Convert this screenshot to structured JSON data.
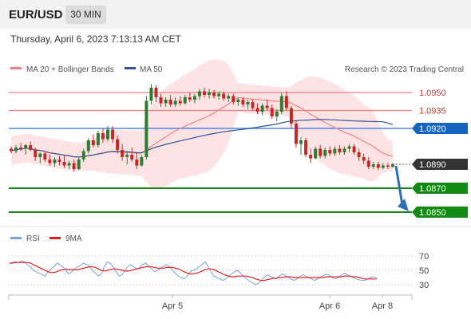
{
  "header": {
    "symbol": "EUR/USD",
    "timeframe": "30 MIN",
    "timestamp": "Thursday, April 6, 2023 7:13:13 AM CET"
  },
  "legend": {
    "ma20": "MA 20 + Bollinger Bands",
    "ma50": "MA 50",
    "credit": "Research © 2023 Trading Central",
    "rsi": "RSI",
    "rsi_ma": "9MA"
  },
  "colors": {
    "ma20": "#f08080",
    "ma50": "#2f5597",
    "bands": "#fde0e0",
    "bull": "#2e7d32",
    "bear": "#c62828",
    "support": "#138a13",
    "resistance": "#f08080",
    "pivot": "#4a86e8",
    "last": "#333333",
    "arrow": "#2e6fb5",
    "rsi": "#7b9fe0",
    "rsi_ma": "#e02020"
  },
  "chart_data": [
    {
      "type": "candlestick",
      "ylim": [
        1.0842,
        1.0962
      ],
      "x_ticks": [
        "Apr 5",
        "Apr 6",
        "Apr 8"
      ],
      "levels": [
        {
          "name": "resistance-2",
          "value": "1.0950",
          "role": "resistance"
        },
        {
          "name": "resistance-1",
          "value": "1.0935",
          "role": "resistance"
        },
        {
          "name": "pivot",
          "value": "1.0920",
          "role": "pivot"
        },
        {
          "name": "last-price",
          "value": "1.0890",
          "role": "last"
        },
        {
          "name": "support-1",
          "value": "1.0870",
          "role": "support"
        },
        {
          "name": "support-2",
          "value": "1.0850",
          "role": "support"
        }
      ],
      "ohlc": [
        [
          1.0903,
          1.0905,
          1.0899,
          1.0901
        ],
        [
          1.0901,
          1.0906,
          1.0899,
          1.0904
        ],
        [
          1.0904,
          1.0908,
          1.0901,
          1.0903
        ],
        [
          1.0903,
          1.0907,
          1.0898,
          1.0906
        ],
        [
          1.0906,
          1.0909,
          1.0901,
          1.0902
        ],
        [
          1.0902,
          1.0904,
          1.0893,
          1.0896
        ],
        [
          1.0896,
          1.09,
          1.0891,
          1.0899
        ],
        [
          1.0899,
          1.0901,
          1.0892,
          1.0894
        ],
        [
          1.0894,
          1.0898,
          1.0889,
          1.0891
        ],
        [
          1.0891,
          1.0896,
          1.0888,
          1.0894
        ],
        [
          1.0894,
          1.0897,
          1.0889,
          1.0892
        ],
        [
          1.0892,
          1.0897,
          1.0887,
          1.0889
        ],
        [
          1.0889,
          1.0893,
          1.0886,
          1.0891
        ],
        [
          1.0891,
          1.0894,
          1.0884,
          1.0886
        ],
        [
          1.0886,
          1.0896,
          1.0885,
          1.0894
        ],
        [
          1.0894,
          1.0903,
          1.0892,
          1.0901
        ],
        [
          1.0901,
          1.0912,
          1.0899,
          1.091
        ],
        [
          1.091,
          1.0915,
          1.0904,
          1.0906
        ],
        [
          1.0906,
          1.0918,
          1.0904,
          1.0916
        ],
        [
          1.0916,
          1.092,
          1.0908,
          1.0911
        ],
        [
          1.0911,
          1.0922,
          1.0909,
          1.0919
        ],
        [
          1.0919,
          1.0922,
          1.0908,
          1.0911
        ],
        [
          1.0911,
          1.0914,
          1.0899,
          1.0902
        ],
        [
          1.0902,
          1.0907,
          1.0893,
          1.0896
        ],
        [
          1.0896,
          1.0901,
          1.089,
          1.0898
        ],
        [
          1.0898,
          1.0904,
          1.0892,
          1.0894
        ],
        [
          1.0894,
          1.09,
          1.0886,
          1.0889
        ],
        [
          1.0889,
          1.0898,
          1.0888,
          1.0896
        ],
        [
          1.0896,
          1.0947,
          1.0894,
          1.0943
        ],
        [
          1.0943,
          1.0957,
          1.094,
          1.0954
        ],
        [
          1.0954,
          1.0956,
          1.0942,
          1.0946
        ],
        [
          1.0946,
          1.0949,
          1.0938,
          1.0941
        ],
        [
          1.0941,
          1.0946,
          1.0938,
          1.0944
        ],
        [
          1.0944,
          1.0948,
          1.0938,
          1.094
        ],
        [
          1.094,
          1.0946,
          1.0938,
          1.0943
        ],
        [
          1.0943,
          1.0947,
          1.0939,
          1.0941
        ],
        [
          1.0941,
          1.0948,
          1.094,
          1.0946
        ],
        [
          1.0946,
          1.095,
          1.0942,
          1.0944
        ],
        [
          1.0944,
          1.0949,
          1.0941,
          1.0947
        ],
        [
          1.0947,
          1.0953,
          1.0944,
          1.0951
        ],
        [
          1.0951,
          1.0954,
          1.0946,
          1.0948
        ],
        [
          1.0948,
          1.0953,
          1.0945,
          1.095
        ],
        [
          1.095,
          1.0952,
          1.0945,
          1.0947
        ],
        [
          1.0947,
          1.0951,
          1.0944,
          1.0949
        ],
        [
          1.0949,
          1.0951,
          1.0943,
          1.0945
        ],
        [
          1.0945,
          1.0949,
          1.0942,
          1.0947
        ],
        [
          1.0947,
          1.0949,
          1.094,
          1.0942
        ],
        [
          1.0942,
          1.0946,
          1.0939,
          1.0944
        ],
        [
          1.0944,
          1.0946,
          1.0938,
          1.094
        ],
        [
          1.094,
          1.0944,
          1.0936,
          1.0942
        ],
        [
          1.0942,
          1.0944,
          1.0935,
          1.0937
        ],
        [
          1.0937,
          1.0941,
          1.0932,
          1.0934
        ],
        [
          1.0934,
          1.0941,
          1.0931,
          1.0939
        ],
        [
          1.0939,
          1.0944,
          1.0935,
          1.0937
        ],
        [
          1.0937,
          1.094,
          1.0928,
          1.093
        ],
        [
          1.093,
          1.0936,
          1.0926,
          1.0934
        ],
        [
          1.0934,
          1.095,
          1.0932,
          1.0947
        ],
        [
          1.0947,
          1.0951,
          1.0935,
          1.0937
        ],
        [
          1.0937,
          1.0939,
          1.092,
          1.0924
        ],
        [
          1.0924,
          1.0926,
          1.0904,
          1.0907
        ],
        [
          1.0907,
          1.0913,
          1.0898,
          1.091
        ],
        [
          1.091,
          1.0912,
          1.0896,
          1.0898
        ],
        [
          1.0898,
          1.0903,
          1.0891,
          1.0895
        ],
        [
          1.0895,
          1.0905,
          1.0894,
          1.0903
        ],
        [
          1.0903,
          1.0906,
          1.0895,
          1.0897
        ],
        [
          1.0897,
          1.0904,
          1.0895,
          1.0902
        ],
        [
          1.0902,
          1.0905,
          1.0897,
          1.0899
        ],
        [
          1.0899,
          1.0905,
          1.0897,
          1.0903
        ],
        [
          1.0903,
          1.0906,
          1.0898,
          1.09
        ],
        [
          1.09,
          1.0905,
          1.0898,
          1.0903
        ],
        [
          1.0903,
          1.0907,
          1.09,
          1.0905
        ],
        [
          1.0905,
          1.0907,
          1.0898,
          1.09
        ],
        [
          1.09,
          1.0903,
          1.0893,
          1.0896
        ],
        [
          1.0896,
          1.0899,
          1.089,
          1.0893
        ],
        [
          1.0893,
          1.0896,
          1.0886,
          1.0888
        ],
        [
          1.0888,
          1.0892,
          1.0886,
          1.089
        ],
        [
          1.089,
          1.0892,
          1.0885,
          1.0887
        ],
        [
          1.0887,
          1.0891,
          1.0886,
          1.0889
        ],
        [
          1.0889,
          1.0891,
          1.0886,
          1.0888
        ],
        [
          1.0888,
          1.0891,
          1.0887,
          1.089
        ]
      ]
    },
    {
      "type": "line",
      "ylim": [
        20,
        80
      ],
      "y_ticks": [
        "70",
        "50",
        "30"
      ],
      "rsi": [
        60,
        61,
        62,
        61,
        63,
        62,
        58,
        55,
        50,
        48,
        46,
        44,
        42,
        48,
        52,
        55,
        60,
        58,
        55,
        50,
        45,
        48,
        52,
        55,
        57,
        60,
        58,
        56,
        50,
        46,
        42,
        45,
        55,
        62,
        60,
        55,
        48,
        42,
        44,
        50,
        56,
        58,
        55,
        52,
        54,
        58,
        60,
        56,
        52,
        48,
        50,
        53,
        56,
        58,
        55,
        50,
        46,
        42,
        40,
        38,
        42,
        48,
        50,
        52,
        55,
        58,
        62,
        56,
        48,
        42,
        40,
        38,
        36,
        38,
        42,
        45,
        48,
        50,
        46,
        42,
        38,
        35,
        33,
        30,
        32,
        36,
        40,
        44,
        42,
        40,
        38,
        42,
        45,
        43,
        40,
        38,
        36,
        38,
        41,
        44,
        42,
        40,
        38,
        36,
        38,
        41,
        43,
        45,
        43,
        40,
        38,
        40,
        43,
        46,
        44,
        42,
        40,
        38,
        37,
        36,
        36,
        38,
        40,
        41,
        40
      ],
      "rsi_ma": [
        60,
        60,
        61,
        61,
        61,
        61,
        61,
        60,
        58,
        56,
        54,
        52,
        50,
        48,
        47,
        47,
        48,
        50,
        51,
        52,
        51,
        51,
        51,
        51,
        52,
        53,
        54,
        55,
        55,
        54,
        52,
        50,
        49,
        50,
        51,
        52,
        52,
        51,
        50,
        49,
        49,
        50,
        51,
        52,
        53,
        54,
        55,
        55,
        55,
        54,
        53,
        53,
        53,
        54,
        54,
        54,
        53,
        52,
        50,
        48,
        46,
        45,
        45,
        46,
        47,
        49,
        51,
        52,
        52,
        51,
        49,
        47,
        45,
        43,
        42,
        41,
        41,
        42,
        42,
        42,
        42,
        41,
        40,
        38,
        37,
        36,
        36,
        37,
        38,
        39,
        39,
        40,
        40,
        41,
        41,
        41,
        40,
        40,
        40,
        40,
        40,
        40,
        40,
        40,
        40,
        40,
        40,
        41,
        41,
        41,
        41,
        41,
        41,
        42,
        42,
        42,
        41,
        41,
        40,
        39,
        38,
        38,
        38,
        38,
        38
      ]
    }
  ]
}
